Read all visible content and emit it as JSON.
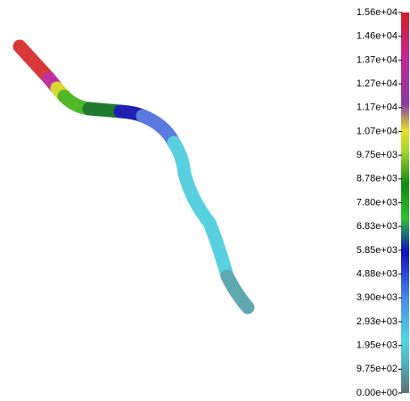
{
  "colorbar": {
    "labels": [
      "1.56e+04",
      "1.46e+04",
      "1.37e+04",
      "1.27e+04",
      "1.17e+04",
      "1.07e+04",
      "9.75e+03",
      "8.78e+03",
      "7.80e+03",
      "6.83e+03",
      "5.85e+03",
      "4.88e+03",
      "3.90e+03",
      "2.93e+03",
      "1.95e+03",
      "9.75e+02",
      "0.00e+00"
    ]
  }
}
